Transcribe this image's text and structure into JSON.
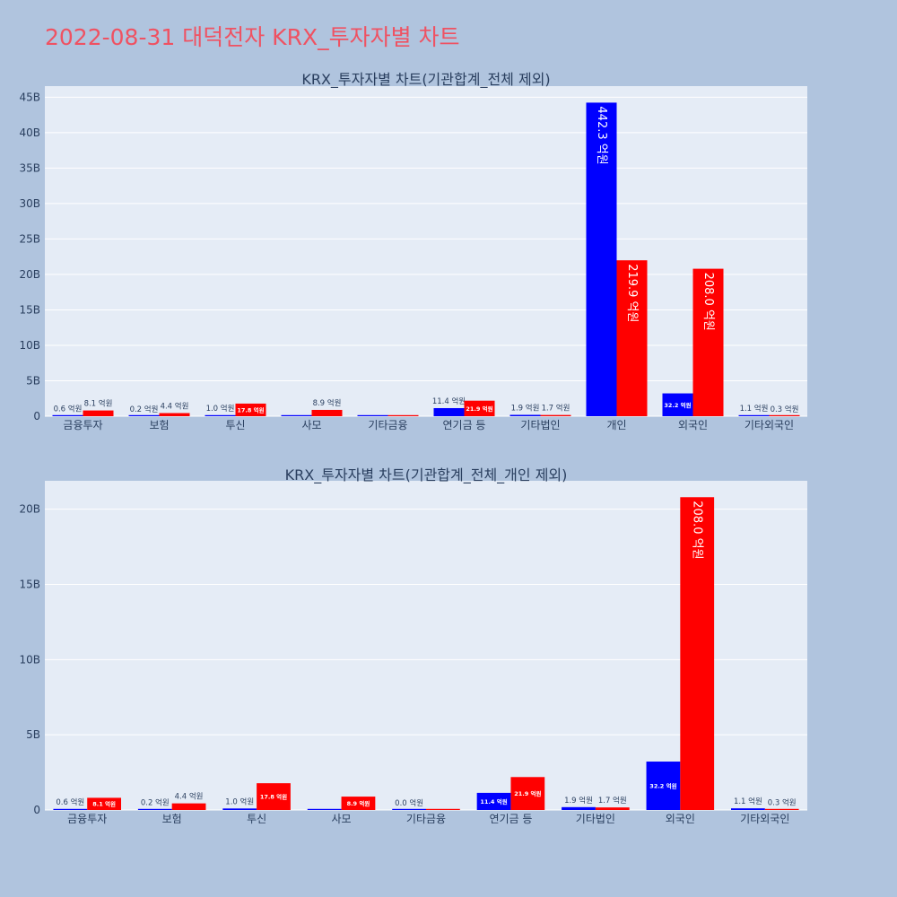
{
  "page": {
    "title": "2022-08-31 대덕전자 KRX_투자자별 차트"
  },
  "colors": {
    "buy": "#0000ff",
    "sell": "#ff0000",
    "plot_bg": "#e5ecf6",
    "paper_bg": "#b0c4de",
    "grid": "#ffffff",
    "title": "#ef5262"
  },
  "chart_data": [
    {
      "type": "bar",
      "title": "KRX_투자자별 차트(기관합계_전체 제외)",
      "categories": [
        "금융투자",
        "보험",
        "투신",
        "사모",
        "기타금융",
        "연기금 등",
        "기타법인",
        "개인",
        "외국인",
        "기타외국인"
      ],
      "series": [
        {
          "color": "#0000ff",
          "values": [
            60000000,
            20000000,
            100000000,
            0,
            0,
            1140000000,
            190000000,
            44230000000,
            3220000000,
            110000000
          ],
          "labels": [
            "0.6 억원",
            "0.2 억원",
            "1.0 억원",
            "",
            "",
            "11.4 억원",
            "1.9 억원",
            "442.3 억원",
            "32.2 억원",
            "1.1 억원"
          ]
        },
        {
          "color": "#ff0000",
          "values": [
            810000000,
            440000000,
            1780000000,
            890000000,
            0,
            2190000000,
            170000000,
            21990000000,
            20800000000,
            30000000
          ],
          "labels": [
            "8.1 억원",
            "4.4 억원",
            "17.8 억원",
            "8.9 억원",
            "",
            "21.9 억원",
            "1.7 억원",
            "219.9 억원",
            "208.0 억원",
            "0.3 억원"
          ]
        }
      ],
      "yticks": [
        0,
        5000000000,
        10000000000,
        15000000000,
        20000000000,
        25000000000,
        30000000000,
        35000000000,
        40000000000,
        45000000000
      ],
      "ytick_labels": [
        "0",
        "5B",
        "10B",
        "15B",
        "20B",
        "25B",
        "30B",
        "35B",
        "40B",
        "45B"
      ],
      "ylim": [
        0,
        46560000000
      ],
      "grid": true
    },
    {
      "type": "bar",
      "title": "KRX_투자자별 차트(기관합계_전체_개인 제외)",
      "categories": [
        "금융투자",
        "보험",
        "투신",
        "사모",
        "기타금융",
        "연기금 등",
        "기타법인",
        "외국인",
        "기타외국인"
      ],
      "series": [
        {
          "color": "#0000ff",
          "values": [
            60000000,
            20000000,
            100000000,
            0,
            0,
            1140000000,
            190000000,
            3220000000,
            110000000
          ],
          "labels": [
            "0.6 억원",
            "0.2 억원",
            "1.0 억원",
            "",
            "0.0 억원",
            "11.4 억원",
            "1.9 억원",
            "32.2 억원",
            "1.1 억원"
          ]
        },
        {
          "color": "#ff0000",
          "values": [
            810000000,
            440000000,
            1780000000,
            890000000,
            0,
            2190000000,
            170000000,
            20800000000,
            30000000
          ],
          "labels": [
            "8.1 억원",
            "4.4 억원",
            "17.8 억원",
            "8.9 억원",
            "",
            "21.9 억원",
            "1.7 억원",
            "208.0 억원",
            "0.3 억원"
          ]
        }
      ],
      "yticks": [
        0,
        5000000000,
        10000000000,
        15000000000,
        20000000000
      ],
      "ytick_labels": [
        "0",
        "5B",
        "10B",
        "15B",
        "20B"
      ],
      "ylim": [
        0,
        21890000000
      ],
      "grid": true
    }
  ]
}
